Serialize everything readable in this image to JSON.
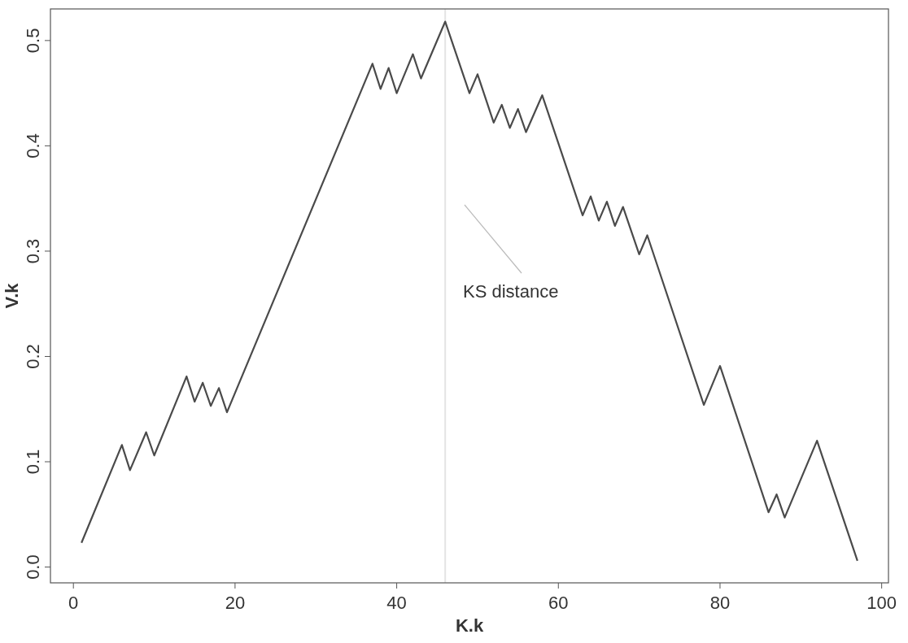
{
  "chart_data": {
    "type": "line",
    "xlabel": "K.k",
    "ylabel": "V.k",
    "x": [
      1,
      6,
      7,
      9,
      10,
      14,
      15,
      16,
      17,
      18,
      19,
      37,
      38,
      39,
      40,
      42,
      43,
      46,
      49,
      50,
      52,
      53,
      54,
      55,
      56,
      58,
      63,
      64,
      65,
      66,
      67,
      68,
      70,
      71,
      78,
      80,
      86,
      87,
      88,
      92,
      97
    ],
    "series": [
      {
        "color": "#4a4a4a",
        "values": [
          0.023,
          0.116,
          0.092,
          0.128,
          0.106,
          0.181,
          0.157,
          0.175,
          0.153,
          0.17,
          0.147,
          0.478,
          0.454,
          0.474,
          0.45,
          0.487,
          0.464,
          0.518,
          0.45,
          0.468,
          0.422,
          0.439,
          0.417,
          0.435,
          0.413,
          0.448,
          0.334,
          0.352,
          0.329,
          0.347,
          0.324,
          0.342,
          0.297,
          0.315,
          0.154,
          0.191,
          0.052,
          0.069,
          0.047,
          0.12,
          0.006
        ]
      }
    ],
    "xlim": [
      -2.84,
      100.84
    ],
    "ylim": [
      -0.015,
      0.53
    ],
    "xticks": [
      0,
      20,
      40,
      60,
      80,
      100
    ],
    "yticks": [
      {
        "value": 0,
        "label": "0.0"
      },
      {
        "value": 0.1,
        "label": "0.1"
      },
      {
        "value": 0.2,
        "label": "0.2"
      },
      {
        "value": 0.3,
        "label": "0.3"
      },
      {
        "value": 0.4,
        "label": "0.4"
      },
      {
        "value": 0.5,
        "label": "0.5"
      }
    ],
    "ref_lines": [
      {
        "axis": "x",
        "value": 46,
        "color": "#e4e4e4"
      }
    ],
    "annotations": [
      "KS distance"
    ],
    "grid": false,
    "marker": "none",
    "line_style": "solid"
  }
}
